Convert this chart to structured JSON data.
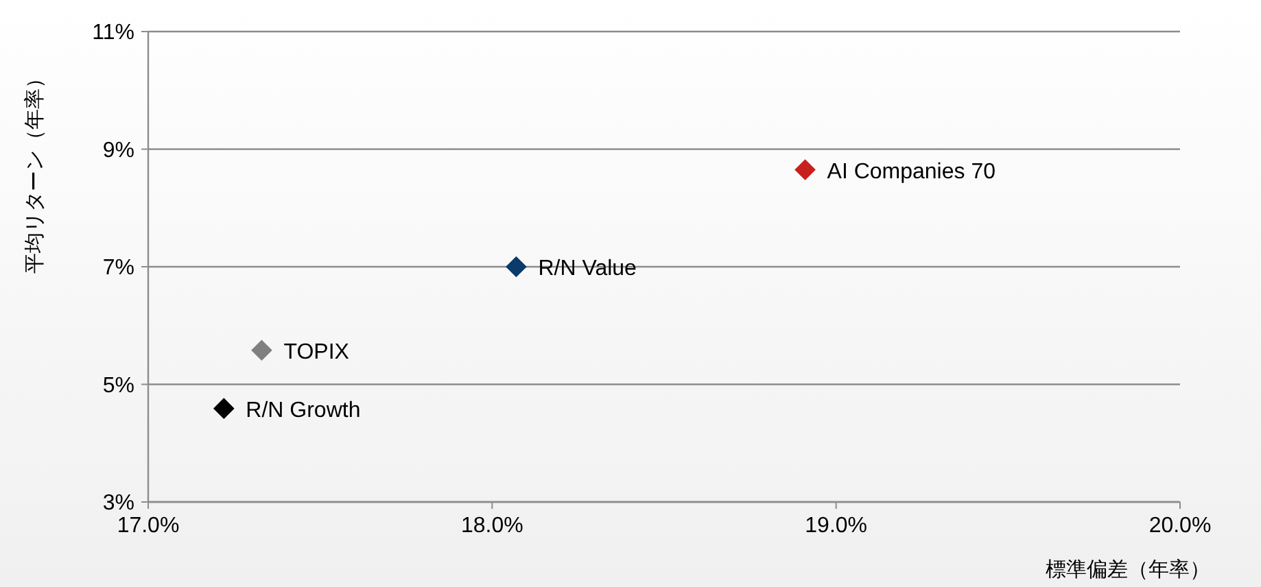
{
  "chart_data": {
    "type": "scatter",
    "xlabel": "標準偏差（年率）",
    "ylabel": "平均リターン（年率）",
    "xlim": [
      17,
      20
    ],
    "xticks": [
      {
        "value": 17,
        "label": "17.0%"
      },
      {
        "value": 18,
        "label": "18.0%"
      },
      {
        "value": 19,
        "label": "19.0%"
      },
      {
        "value": 20,
        "label": "20.0%"
      }
    ],
    "ylim": [
      3,
      11
    ],
    "yticks": [
      {
        "value": 3,
        "label": "3%"
      },
      {
        "value": 5,
        "label": "5%"
      },
      {
        "value": 7,
        "label": "7%"
      },
      {
        "value": 9,
        "label": "9%"
      },
      {
        "value": 11,
        "label": "11%"
      }
    ],
    "grid": "y",
    "marker": "diamond",
    "legend": false,
    "series": [
      {
        "name": "AI Companies 70",
        "color": "#c8201e",
        "x": [
          18.91
        ],
        "values": [
          8.65
        ]
      },
      {
        "name": "R/N Value",
        "color": "#0b3a6b",
        "x": [
          18.07
        ],
        "values": [
          7.0
        ]
      },
      {
        "name": "TOPIX",
        "color": "#808080",
        "x": [
          17.33
        ],
        "values": [
          5.58
        ]
      },
      {
        "name": "R/N Growth",
        "color": "#000000",
        "x": [
          17.22
        ],
        "values": [
          4.59
        ]
      }
    ]
  }
}
